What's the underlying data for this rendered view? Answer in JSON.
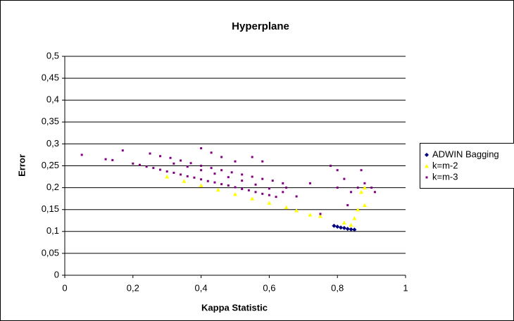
{
  "chart_data": {
    "type": "scatter",
    "title": "Hyperplane",
    "x_label": "Kappa Statistic",
    "y_label": "Error",
    "xlim": [
      0,
      1
    ],
    "ylim": [
      0,
      0.5
    ],
    "grid": true,
    "legend": "right",
    "xticks": [
      0,
      {
        "value": 0.2,
        "label": "0,2"
      },
      {
        "value": 0.4,
        "label": "0,4"
      },
      {
        "value": 0.6,
        "label": "0,6"
      },
      {
        "value": 0.8,
        "label": "0,8"
      },
      1
    ],
    "yticks": [
      0,
      {
        "value": 0.05,
        "label": "0,05"
      },
      {
        "value": 0.1,
        "label": "0,1"
      },
      {
        "value": 0.15,
        "label": "0,15"
      },
      {
        "value": 0.2,
        "label": "0,2"
      },
      {
        "value": 0.25,
        "label": "0,25"
      },
      {
        "value": 0.3,
        "label": "0,3"
      },
      {
        "value": 0.35,
        "label": "0,35"
      },
      {
        "value": 0.4,
        "label": "0,4"
      },
      {
        "value": 0.45,
        "label": "0,45"
      },
      {
        "value": 0.5,
        "label": "0,5"
      }
    ],
    "series": [
      {
        "name": "ADWIN Bagging",
        "color": "#000080",
        "marker": "diamond",
        "x": [
          0.79,
          0.8,
          0.81,
          0.82,
          0.83,
          0.84,
          0.85
        ],
        "values": [
          0.113,
          0.111,
          0.109,
          0.108,
          0.106,
          0.105,
          0.104
        ]
      },
      {
        "name": "k=m-2",
        "color": "#ffff00",
        "marker": "triangle",
        "x": [
          0.3,
          0.35,
          0.4,
          0.45,
          0.5,
          0.55,
          0.6,
          0.65,
          0.68,
          0.72,
          0.75,
          0.82,
          0.84,
          0.85,
          0.86,
          0.88,
          0.88,
          0.87
        ],
        "values": [
          0.225,
          0.215,
          0.205,
          0.195,
          0.185,
          0.175,
          0.165,
          0.155,
          0.148,
          0.138,
          0.135,
          0.12,
          0.115,
          0.13,
          0.15,
          0.16,
          0.2,
          0.19
        ]
      },
      {
        "name": "k=m-3",
        "color": "#800080",
        "marker": "square",
        "x": [
          0.05,
          0.12,
          0.14,
          0.17,
          0.2,
          0.22,
          0.24,
          0.26,
          0.28,
          0.3,
          0.32,
          0.34,
          0.36,
          0.38,
          0.4,
          0.42,
          0.44,
          0.46,
          0.48,
          0.5,
          0.52,
          0.54,
          0.56,
          0.58,
          0.6,
          0.62,
          0.65,
          0.25,
          0.28,
          0.31,
          0.34,
          0.37,
          0.4,
          0.43,
          0.46,
          0.49,
          0.52,
          0.55,
          0.58,
          0.61,
          0.64,
          0.32,
          0.36,
          0.4,
          0.44,
          0.48,
          0.52,
          0.56,
          0.6,
          0.64,
          0.68,
          0.72,
          0.75,
          0.4,
          0.43,
          0.46,
          0.5,
          0.55,
          0.58,
          0.78,
          0.8,
          0.82,
          0.84,
          0.86,
          0.88,
          0.9,
          0.91,
          0.8,
          0.83,
          0.87
        ],
        "values": [
          0.275,
          0.265,
          0.263,
          0.285,
          0.255,
          0.252,
          0.248,
          0.245,
          0.241,
          0.237,
          0.234,
          0.23,
          0.226,
          0.223,
          0.219,
          0.215,
          0.212,
          0.208,
          0.205,
          0.201,
          0.197,
          0.194,
          0.19,
          0.186,
          0.183,
          0.179,
          0.2,
          0.278,
          0.272,
          0.268,
          0.262,
          0.256,
          0.25,
          0.245,
          0.24,
          0.235,
          0.23,
          0.225,
          0.22,
          0.216,
          0.21,
          0.255,
          0.248,
          0.24,
          0.232,
          0.224,
          0.216,
          0.207,
          0.198,
          0.19,
          0.18,
          0.21,
          0.14,
          0.29,
          0.28,
          0.27,
          0.26,
          0.27,
          0.26,
          0.25,
          0.24,
          0.22,
          0.19,
          0.2,
          0.21,
          0.2,
          0.19,
          0.2,
          0.16,
          0.24
        ]
      }
    ]
  }
}
